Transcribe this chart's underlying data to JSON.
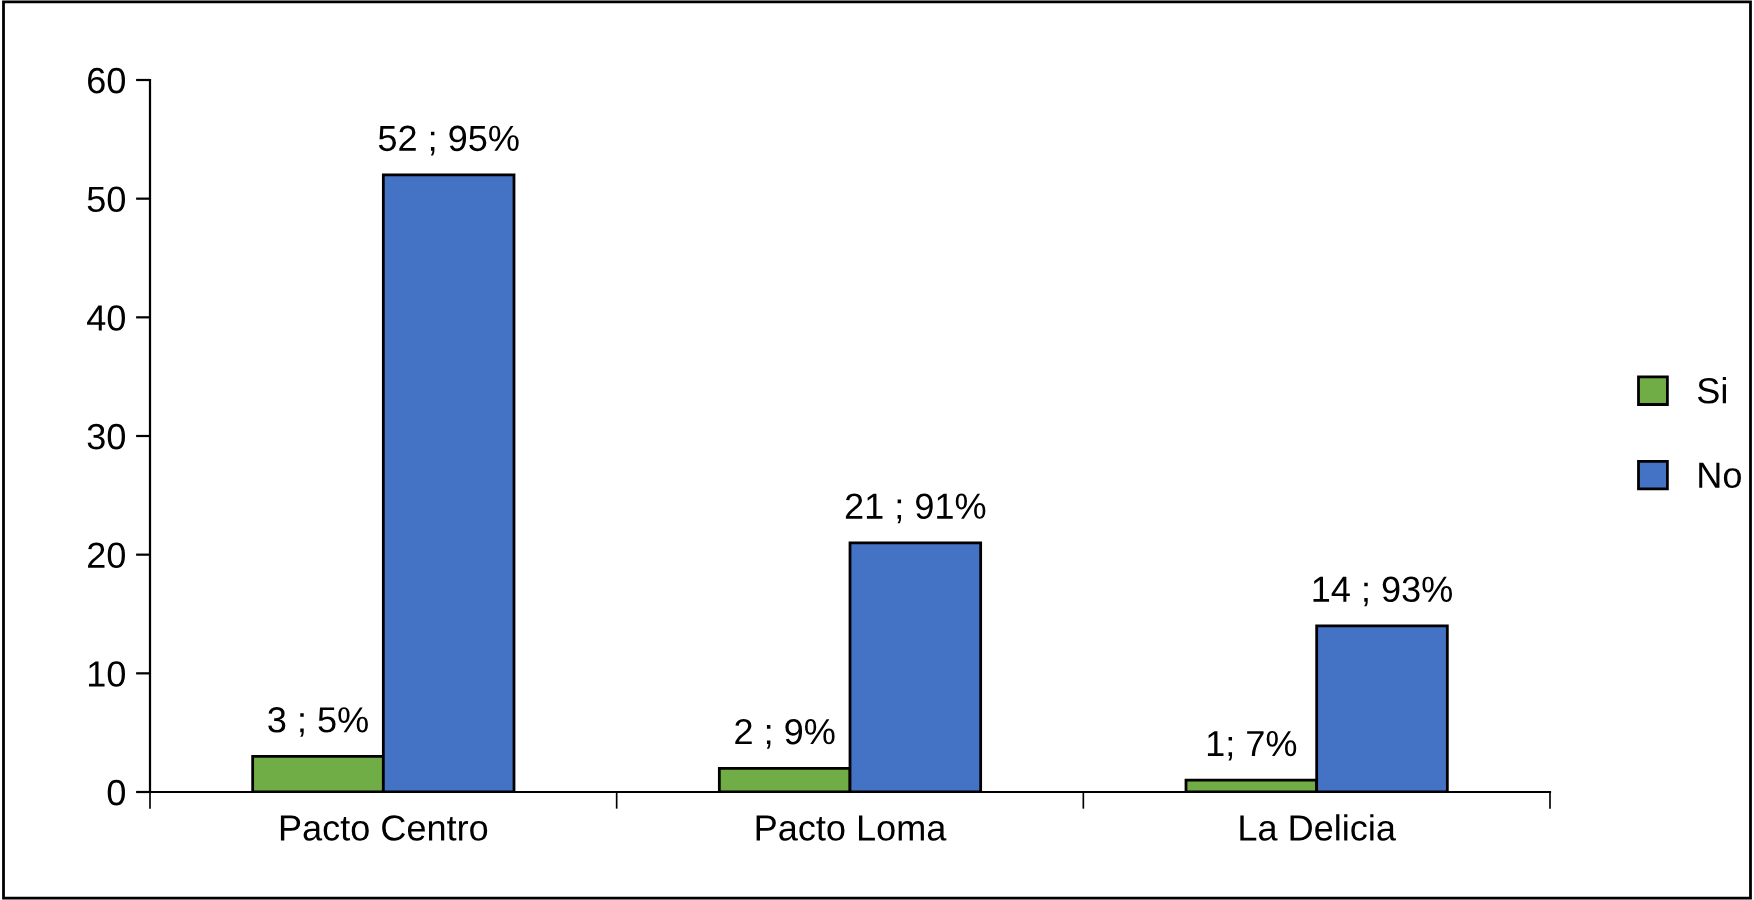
{
  "chart_data": {
    "type": "bar",
    "categories": [
      "Pacto Centro",
      "Pacto Loma",
      "La Delicia"
    ],
    "series": [
      {
        "name": "Si",
        "color": "#70ad47",
        "values": [
          3,
          2,
          1
        ],
        "value_labels": [
          "3 ; 5%",
          "2 ; 9%",
          "1; 7%"
        ]
      },
      {
        "name": "No",
        "color": "#4472c4",
        "values": [
          52,
          21,
          14
        ],
        "value_labels": [
          "52 ; 95%",
          "21 ; 91%",
          "14 ; 93%"
        ]
      }
    ],
    "ylim": [
      0,
      60
    ],
    "yticks": [
      0,
      10,
      20,
      30,
      40,
      50,
      60
    ],
    "grid": false,
    "legend": "right"
  }
}
